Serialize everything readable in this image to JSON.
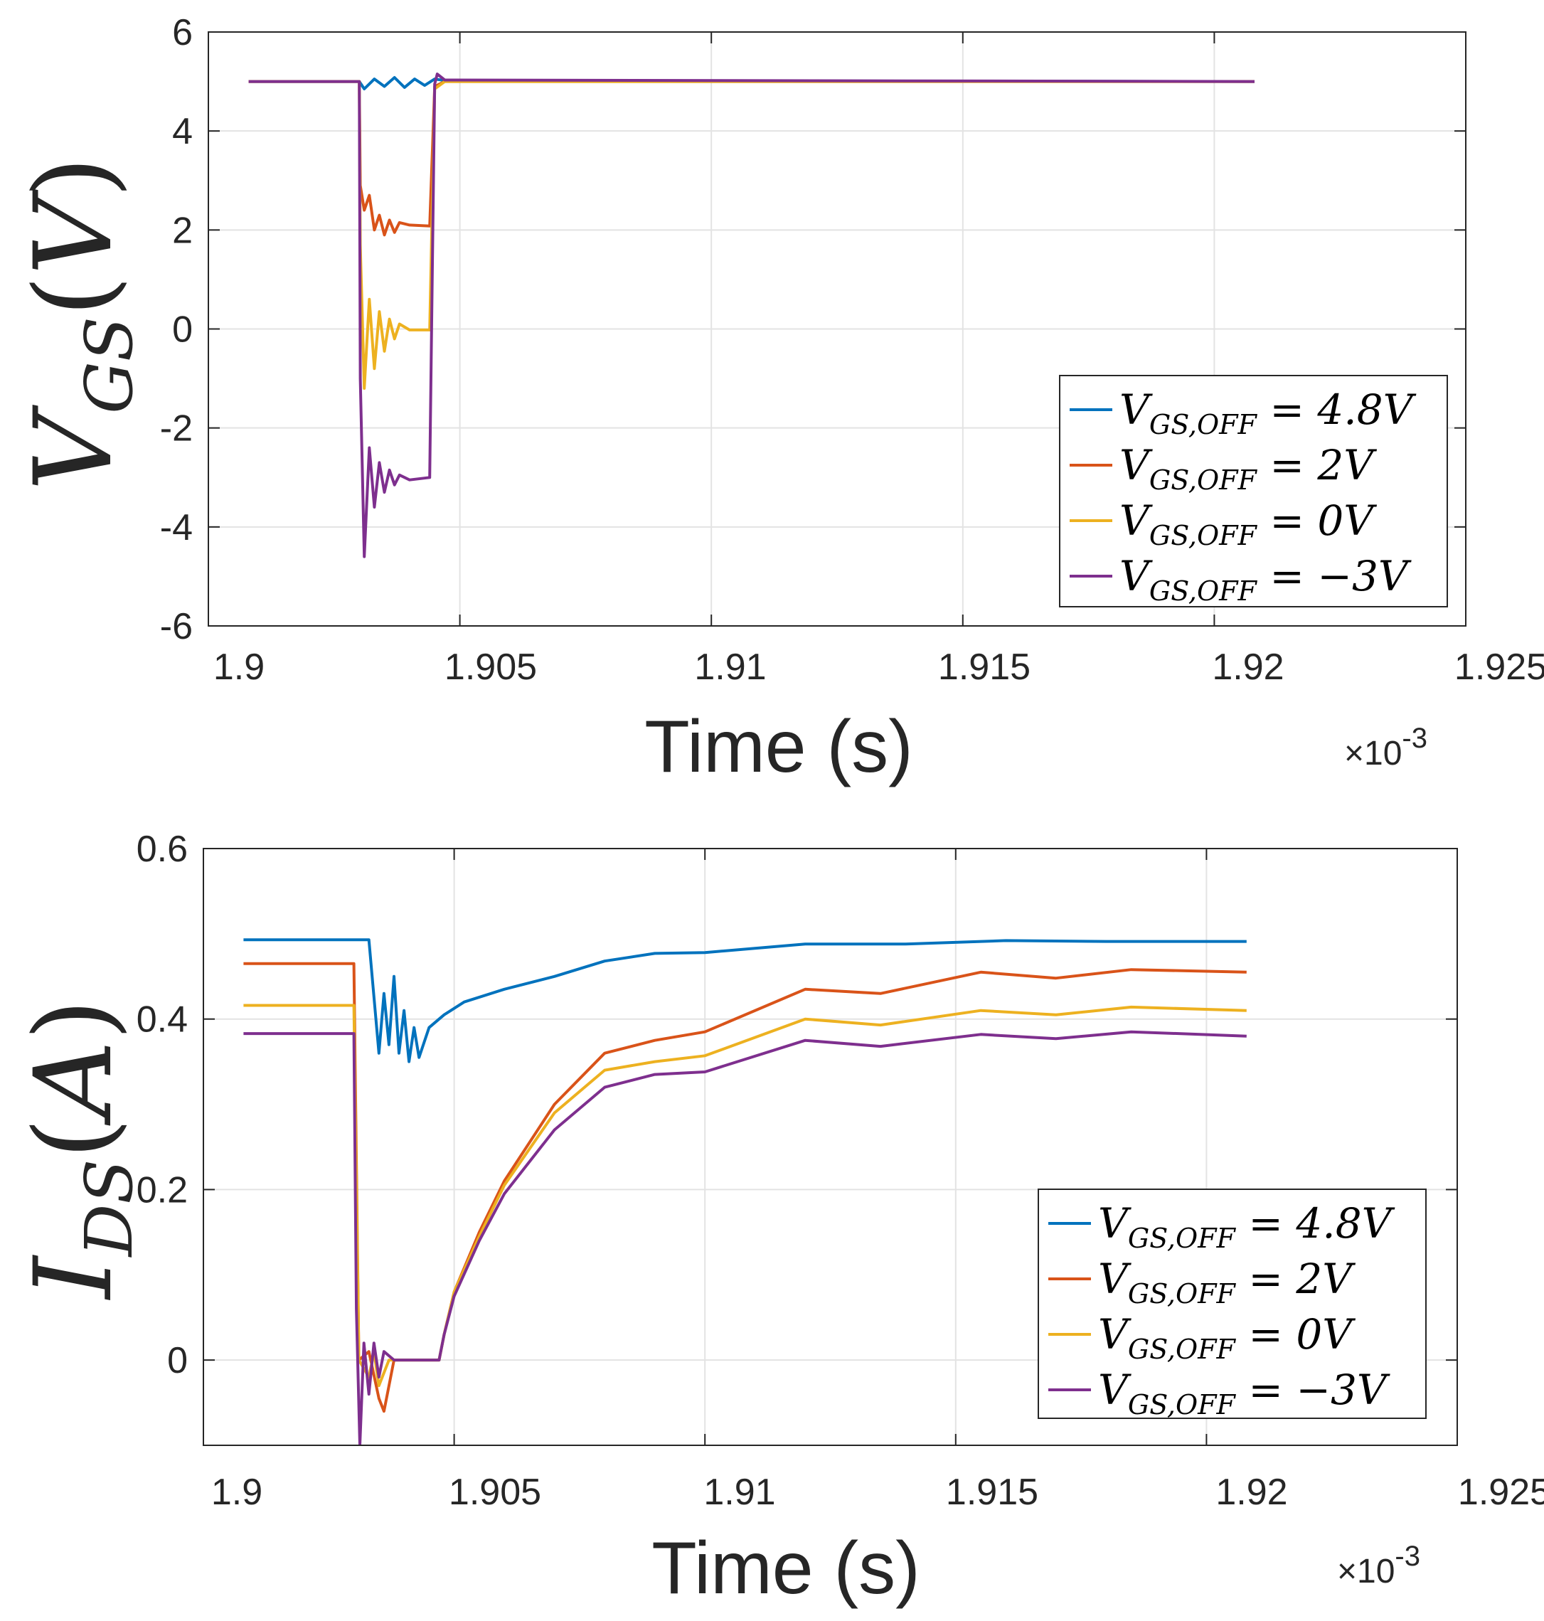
{
  "chart_data": [
    {
      "type": "line",
      "ylabel": {
        "main": "V",
        "sub": "GS",
        "unit": "V"
      },
      "xlabel": "Time (s)",
      "x_multiplier": "×10",
      "x_exponent": "-3",
      "xlim": [
        1.9,
        1.925
      ],
      "ylim": [
        -6,
        6
      ],
      "xticks": [
        "1.9",
        "1.905",
        "1.91",
        "1.915",
        "1.92",
        "1.925"
      ],
      "yticks": [
        "6",
        "4",
        "2",
        "0",
        "-2",
        "-4",
        "-6"
      ],
      "grid": true,
      "legend_position": "bottom-right",
      "series": [
        {
          "name": "V_GS,OFF = 4.8V",
          "color": "#0072BD",
          "points": [
            [
              1.9008,
              5
            ],
            [
              1.903,
              5
            ],
            [
              1.9031,
              4.85
            ],
            [
              1.9033,
              5.05
            ],
            [
              1.9035,
              4.9
            ],
            [
              1.9037,
              5.08
            ],
            [
              1.9039,
              4.88
            ],
            [
              1.9041,
              5.05
            ],
            [
              1.9043,
              4.92
            ],
            [
              1.9045,
              5.05
            ],
            [
              1.9047,
              5.02
            ],
            [
              1.9208,
              5
            ]
          ]
        },
        {
          "name": "V_GS,OFF = 2V",
          "color": "#D95319",
          "points": [
            [
              1.9008,
              5
            ],
            [
              1.903,
              5
            ],
            [
              1.90302,
              2.9
            ],
            [
              1.9031,
              2.4
            ],
            [
              1.9032,
              2.7
            ],
            [
              1.9033,
              2.0
            ],
            [
              1.9034,
              2.3
            ],
            [
              1.9035,
              1.9
            ],
            [
              1.9036,
              2.2
            ],
            [
              1.9037,
              1.95
            ],
            [
              1.9038,
              2.15
            ],
            [
              1.904,
              2.1
            ],
            [
              1.9044,
              2.08
            ],
            [
              1.9045,
              4.9
            ],
            [
              1.9047,
              5
            ],
            [
              1.9208,
              5
            ]
          ]
        },
        {
          "name": "V_GS,OFF = 0V",
          "color": "#EDB120",
          "points": [
            [
              1.9008,
              5
            ],
            [
              1.903,
              5
            ],
            [
              1.90302,
              1.7
            ],
            [
              1.9031,
              -1.2
            ],
            [
              1.9032,
              0.6
            ],
            [
              1.9033,
              -0.8
            ],
            [
              1.9034,
              0.35
            ],
            [
              1.9035,
              -0.45
            ],
            [
              1.9036,
              0.2
            ],
            [
              1.9037,
              -0.2
            ],
            [
              1.9038,
              0.1
            ],
            [
              1.904,
              -0.02
            ],
            [
              1.9044,
              -0.02
            ],
            [
              1.9045,
              4.85
            ],
            [
              1.9047,
              5
            ],
            [
              1.9208,
              5
            ]
          ]
        },
        {
          "name": "V_GS,OFF = −3V",
          "color": "#7E2F8E",
          "points": [
            [
              1.9008,
              5
            ],
            [
              1.903,
              5
            ],
            [
              1.90302,
              -1.0
            ],
            [
              1.9031,
              -4.6
            ],
            [
              1.9032,
              -2.4
            ],
            [
              1.9033,
              -3.6
            ],
            [
              1.9034,
              -2.7
            ],
            [
              1.9035,
              -3.3
            ],
            [
              1.9036,
              -2.85
            ],
            [
              1.9037,
              -3.15
            ],
            [
              1.9038,
              -2.95
            ],
            [
              1.904,
              -3.05
            ],
            [
              1.9044,
              -3.0
            ],
            [
              1.9045,
              4.95
            ],
            [
              1.90455,
              5.15
            ],
            [
              1.9047,
              5.03
            ],
            [
              1.9208,
              5
            ]
          ]
        }
      ]
    },
    {
      "type": "line",
      "ylabel": {
        "main": "I",
        "sub": "DS",
        "unit": "A"
      },
      "xlabel": "Time (s)",
      "x_multiplier": "×10",
      "x_exponent": "-3",
      "xlim": [
        1.9,
        1.925
      ],
      "ylim": [
        -0.1,
        0.6
      ],
      "xticks": [
        "1.9",
        "1.905",
        "1.91",
        "1.915",
        "1.92",
        "1.925"
      ],
      "yticks": [
        "0.6",
        "0.4",
        "0.2",
        "0"
      ],
      "grid": true,
      "legend_position": "bottom-right",
      "series": [
        {
          "name": "V_GS,OFF = 4.8V",
          "color": "#0072BD",
          "points": [
            [
              1.9008,
              0.493
            ],
            [
              1.9033,
              0.493
            ],
            [
              1.9035,
              0.36
            ],
            [
              1.9036,
              0.43
            ],
            [
              1.9037,
              0.37
            ],
            [
              1.9038,
              0.45
            ],
            [
              1.9039,
              0.36
            ],
            [
              1.904,
              0.41
            ],
            [
              1.9041,
              0.35
            ],
            [
              1.9042,
              0.39
            ],
            [
              1.9043,
              0.355
            ],
            [
              1.9045,
              0.39
            ],
            [
              1.9048,
              0.405
            ],
            [
              1.9052,
              0.42
            ],
            [
              1.906,
              0.435
            ],
            [
              1.907,
              0.45
            ],
            [
              1.908,
              0.468
            ],
            [
              1.909,
              0.477
            ],
            [
              1.91,
              0.478
            ],
            [
              1.912,
              0.488
            ],
            [
              1.914,
              0.488
            ],
            [
              1.916,
              0.492
            ],
            [
              1.918,
              0.491
            ],
            [
              1.9208,
              0.491
            ]
          ]
        },
        {
          "name": "V_GS,OFF = 2V",
          "color": "#D95319",
          "points": [
            [
              1.9008,
              0.465
            ],
            [
              1.903,
              0.465
            ],
            [
              1.9031,
              0.0
            ],
            [
              1.9033,
              0.01
            ],
            [
              1.9035,
              -0.045
            ],
            [
              1.9036,
              -0.06
            ],
            [
              1.9038,
              0.0
            ],
            [
              1.9047,
              0.0
            ],
            [
              1.9048,
              0.03
            ],
            [
              1.905,
              0.08
            ],
            [
              1.9055,
              0.15
            ],
            [
              1.906,
              0.21
            ],
            [
              1.907,
              0.3
            ],
            [
              1.908,
              0.36
            ],
            [
              1.909,
              0.375
            ],
            [
              1.91,
              0.385
            ],
            [
              1.912,
              0.435
            ],
            [
              1.9135,
              0.43
            ],
            [
              1.9155,
              0.455
            ],
            [
              1.917,
              0.448
            ],
            [
              1.9185,
              0.458
            ],
            [
              1.9208,
              0.455
            ]
          ]
        },
        {
          "name": "V_GS,OFF = 0V",
          "color": "#EDB120",
          "points": [
            [
              1.9008,
              0.416
            ],
            [
              1.903,
              0.416
            ],
            [
              1.9031,
              0.0
            ],
            [
              1.9033,
              -0.02
            ],
            [
              1.9034,
              0.01
            ],
            [
              1.9035,
              -0.03
            ],
            [
              1.9037,
              0.0
            ],
            [
              1.9047,
              0.0
            ],
            [
              1.9048,
              0.03
            ],
            [
              1.905,
              0.08
            ],
            [
              1.9055,
              0.145
            ],
            [
              1.906,
              0.205
            ],
            [
              1.907,
              0.29
            ],
            [
              1.908,
              0.34
            ],
            [
              1.909,
              0.35
            ],
            [
              1.91,
              0.357
            ],
            [
              1.912,
              0.4
            ],
            [
              1.9135,
              0.393
            ],
            [
              1.9155,
              0.41
            ],
            [
              1.917,
              0.405
            ],
            [
              1.9185,
              0.414
            ],
            [
              1.9208,
              0.41
            ]
          ]
        },
        {
          "name": "V_GS,OFF = −3V",
          "color": "#7E2F8E",
          "points": [
            [
              1.9008,
              0.383
            ],
            [
              1.903,
              0.383
            ],
            [
              1.90305,
              0.06
            ],
            [
              1.90312,
              -0.1
            ],
            [
              1.9032,
              0.02
            ],
            [
              1.9033,
              -0.04
            ],
            [
              1.9034,
              0.02
            ],
            [
              1.9035,
              -0.02
            ],
            [
              1.9036,
              0.01
            ],
            [
              1.9038,
              0.0
            ],
            [
              1.9047,
              0.0
            ],
            [
              1.9048,
              0.03
            ],
            [
              1.905,
              0.075
            ],
            [
              1.9055,
              0.14
            ],
            [
              1.906,
              0.195
            ],
            [
              1.907,
              0.27
            ],
            [
              1.908,
              0.32
            ],
            [
              1.909,
              0.335
            ],
            [
              1.91,
              0.338
            ],
            [
              1.912,
              0.375
            ],
            [
              1.9135,
              0.368
            ],
            [
              1.9155,
              0.382
            ],
            [
              1.917,
              0.377
            ],
            [
              1.9185,
              0.385
            ],
            [
              1.9208,
              0.38
            ]
          ]
        }
      ]
    }
  ],
  "legend": [
    {
      "prefix": "V",
      "sub": "GS,OFF",
      "rest": " = 4.8V"
    },
    {
      "prefix": "V",
      "sub": "GS,OFF",
      "rest": " = 2V"
    },
    {
      "prefix": "V",
      "sub": "GS,OFF",
      "rest": " = 0V"
    },
    {
      "prefix": "V",
      "sub": "GS,OFF",
      "rest": " = −3V"
    }
  ]
}
